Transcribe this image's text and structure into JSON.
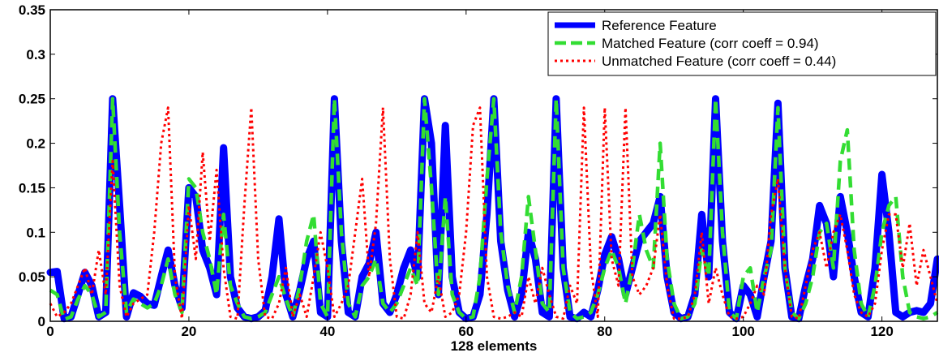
{
  "chart_data": {
    "type": "line",
    "xlabel": "128 elements",
    "ylabel": "",
    "title": "",
    "xlim": [
      0,
      128
    ],
    "ylim": [
      0,
      0.35
    ],
    "xticks": [
      0,
      20,
      40,
      60,
      80,
      100,
      120
    ],
    "xtick_labels": [
      "0",
      "20",
      "40",
      "60",
      "80",
      "100",
      "120"
    ],
    "yticks": [
      0,
      0.05,
      0.1,
      0.15,
      0.2,
      0.25,
      0.3,
      0.35
    ],
    "ytick_labels": [
      "0",
      "0.05",
      "0.1",
      "0.15",
      "0.2",
      "0.25",
      "0.3",
      "0.35"
    ],
    "legend_position": "top-right",
    "grid": false,
    "series": [
      {
        "name": "Reference Feature",
        "color": "#0000ff",
        "style": "solid-thick",
        "x": [
          0,
          1,
          2,
          3,
          4,
          5,
          6,
          7,
          8,
          9,
          10,
          11,
          12,
          13,
          14,
          15,
          16,
          17,
          18,
          19,
          20,
          21,
          22,
          23,
          24,
          25,
          26,
          27,
          28,
          29,
          30,
          31,
          32,
          33,
          34,
          35,
          36,
          37,
          38,
          39,
          40,
          41,
          42,
          43,
          44,
          45,
          46,
          47,
          48,
          49,
          50,
          51,
          52,
          53,
          54,
          55,
          56,
          57,
          58,
          59,
          60,
          61,
          62,
          63,
          64,
          65,
          66,
          67,
          68,
          69,
          70,
          71,
          72,
          73,
          74,
          75,
          76,
          77,
          78,
          79,
          80,
          81,
          82,
          83,
          84,
          85,
          86,
          87,
          88,
          89,
          90,
          91,
          92,
          93,
          94,
          95,
          96,
          97,
          98,
          99,
          100,
          101,
          102,
          103,
          104,
          105,
          106,
          107,
          108,
          109,
          110,
          111,
          112,
          113,
          114,
          115,
          116,
          117,
          118,
          119,
          120,
          121,
          122,
          123,
          124,
          125,
          126,
          127,
          128
        ],
        "values": [
          0.055,
          0.056,
          0.003,
          0.005,
          0.03,
          0.055,
          0.04,
          0.005,
          0.01,
          0.25,
          0.13,
          0.005,
          0.032,
          0.028,
          0.02,
          0.018,
          0.05,
          0.08,
          0.04,
          0.015,
          0.15,
          0.14,
          0.08,
          0.06,
          0.03,
          0.195,
          0.05,
          0.015,
          0.005,
          0.003,
          0.005,
          0.012,
          0.05,
          0.115,
          0.03,
          0.005,
          0.035,
          0.07,
          0.09,
          0.01,
          0.005,
          0.25,
          0.09,
          0.01,
          0.005,
          0.05,
          0.065,
          0.1,
          0.02,
          0.01,
          0.03,
          0.06,
          0.08,
          0.05,
          0.25,
          0.2,
          0.03,
          0.22,
          0.05,
          0.01,
          0.003,
          0.005,
          0.03,
          0.12,
          0.25,
          0.09,
          0.035,
          0.005,
          0.03,
          0.1,
          0.07,
          0.01,
          0.005,
          0.25,
          0.06,
          0.005,
          0.003,
          0.01,
          0.005,
          0.035,
          0.075,
          0.095,
          0.07,
          0.03,
          0.06,
          0.09,
          0.1,
          0.11,
          0.14,
          0.05,
          0.01,
          0.003,
          0.005,
          0.03,
          0.12,
          0.05,
          0.25,
          0.09,
          0.01,
          0.003,
          0.04,
          0.03,
          0.005,
          0.05,
          0.09,
          0.245,
          0.06,
          0.005,
          0.003,
          0.04,
          0.07,
          0.13,
          0.11,
          0.05,
          0.14,
          0.1,
          0.05,
          0.01,
          0.005,
          0.06,
          0.165,
          0.1,
          0.01,
          0.005,
          0.01,
          0.012,
          0.01,
          0.02,
          0.07
        ]
      },
      {
        "name": "Matched Feature (corr coeff = 0.94)",
        "color": "#33dd33",
        "style": "dashed",
        "x": [
          0,
          1,
          2,
          3,
          4,
          5,
          6,
          7,
          8,
          9,
          10,
          11,
          12,
          13,
          14,
          15,
          16,
          17,
          18,
          19,
          20,
          21,
          22,
          23,
          24,
          25,
          26,
          27,
          28,
          29,
          30,
          31,
          32,
          33,
          34,
          35,
          36,
          37,
          38,
          39,
          40,
          41,
          42,
          43,
          44,
          45,
          46,
          47,
          48,
          49,
          50,
          51,
          52,
          53,
          54,
          55,
          56,
          57,
          58,
          59,
          60,
          61,
          62,
          63,
          64,
          65,
          66,
          67,
          68,
          69,
          70,
          71,
          72,
          73,
          74,
          75,
          76,
          77,
          78,
          79,
          80,
          81,
          82,
          83,
          84,
          85,
          86,
          87,
          88,
          89,
          90,
          91,
          92,
          93,
          94,
          95,
          96,
          97,
          98,
          99,
          100,
          101,
          102,
          103,
          104,
          105,
          106,
          107,
          108,
          109,
          110,
          111,
          112,
          113,
          114,
          115,
          116,
          117,
          118,
          119,
          120,
          121,
          122,
          123,
          124,
          125,
          126,
          127,
          128
        ],
        "values": [
          0.035,
          0.03,
          0.002,
          0.005,
          0.025,
          0.04,
          0.03,
          0.005,
          0.01,
          0.25,
          0.1,
          0.01,
          0.025,
          0.02,
          0.015,
          0.02,
          0.04,
          0.07,
          0.03,
          0.01,
          0.16,
          0.15,
          0.1,
          0.07,
          0.03,
          0.12,
          0.04,
          0.02,
          0.005,
          0.003,
          0.005,
          0.01,
          0.03,
          0.05,
          0.025,
          0.005,
          0.04,
          0.09,
          0.12,
          0.02,
          0.005,
          0.25,
          0.1,
          0.02,
          0.005,
          0.04,
          0.05,
          0.07,
          0.02,
          0.01,
          0.02,
          0.04,
          0.06,
          0.04,
          0.25,
          0.15,
          0.03,
          0.14,
          0.03,
          0.01,
          0.003,
          0.005,
          0.05,
          0.16,
          0.25,
          0.1,
          0.04,
          0.01,
          0.05,
          0.14,
          0.08,
          0.02,
          0.01,
          0.25,
          0.06,
          0.01,
          0.003,
          0.005,
          0.01,
          0.03,
          0.06,
          0.08,
          0.06,
          0.02,
          0.06,
          0.12,
          0.08,
          0.06,
          0.2,
          0.07,
          0.02,
          0.003,
          0.005,
          0.02,
          0.08,
          0.05,
          0.25,
          0.1,
          0.01,
          0.003,
          0.05,
          0.06,
          0.01,
          0.05,
          0.08,
          0.24,
          0.06,
          0.01,
          0.003,
          0.02,
          0.05,
          0.1,
          0.11,
          0.06,
          0.18,
          0.215,
          0.08,
          0.02,
          0.005,
          0.04,
          0.1,
          0.13,
          0.14,
          0.05,
          0.01,
          0.005,
          0.003,
          0.005,
          0.01
        ]
      },
      {
        "name": "Unmatched Feature (corr coeff = 0.44)",
        "color": "#ff0000",
        "style": "dotted",
        "x": [
          0,
          1,
          2,
          3,
          4,
          5,
          6,
          7,
          8,
          9,
          10,
          11,
          12,
          13,
          14,
          15,
          16,
          17,
          18,
          19,
          20,
          21,
          22,
          23,
          24,
          25,
          26,
          27,
          28,
          29,
          30,
          31,
          32,
          33,
          34,
          35,
          36,
          37,
          38,
          39,
          40,
          41,
          42,
          43,
          44,
          45,
          46,
          47,
          48,
          49,
          50,
          51,
          52,
          53,
          54,
          55,
          56,
          57,
          58,
          59,
          60,
          61,
          62,
          63,
          64,
          65,
          66,
          67,
          68,
          69,
          70,
          71,
          72,
          73,
          74,
          75,
          76,
          77,
          78,
          79,
          80,
          81,
          82,
          83,
          84,
          85,
          86,
          87,
          88,
          89,
          90,
          91,
          92,
          93,
          94,
          95,
          96,
          97,
          98,
          99,
          100,
          101,
          102,
          103,
          104,
          105,
          106,
          107,
          108,
          109,
          110,
          111,
          112,
          113,
          114,
          115,
          116,
          117,
          118,
          119,
          120,
          121,
          122,
          123,
          124,
          125,
          126,
          127,
          128
        ],
        "values": [
          0.02,
          0.005,
          0.01,
          0.02,
          0.04,
          0.06,
          0.03,
          0.08,
          0.03,
          0.18,
          0.04,
          0.005,
          0.02,
          0.025,
          0.03,
          0.1,
          0.2,
          0.24,
          0.05,
          0.003,
          0.13,
          0.07,
          0.19,
          0.09,
          0.17,
          0.06,
          0.005,
          0.003,
          0.13,
          0.24,
          0.07,
          0.005,
          0.003,
          0.02,
          0.06,
          0.005,
          0.03,
          0.005,
          0.05,
          0.1,
          0.06,
          0.005,
          0.02,
          0.04,
          0.1,
          0.16,
          0.05,
          0.11,
          0.24,
          0.07,
          0.005,
          0.003,
          0.03,
          0.1,
          0.02,
          0.01,
          0.05,
          0.005,
          0.01,
          0.03,
          0.1,
          0.22,
          0.24,
          0.05,
          0.005,
          0.003,
          0.005,
          0.01,
          0.005,
          0.05,
          0.02,
          0.06,
          0.03,
          0.005,
          0.003,
          0.04,
          0.02,
          0.24,
          0.06,
          0.005,
          0.24,
          0.07,
          0.04,
          0.24,
          0.05,
          0.03,
          0.04,
          0.06,
          0.12,
          0.04,
          0.003,
          0.003,
          0.005,
          0.03,
          0.1,
          0.02,
          0.06,
          0.03,
          0.005,
          0.003,
          0.005,
          0.02,
          0.04,
          0.03,
          0.12,
          0.16,
          0.06,
          0.005,
          0.003,
          0.04,
          0.08,
          0.1,
          0.06,
          0.1,
          0.12,
          0.08,
          0.03,
          0.01,
          0.005,
          0.02,
          0.08,
          0.12,
          0.12,
          0.06,
          0.11,
          0.04,
          0.08,
          0.05,
          0.02
        ]
      }
    ]
  }
}
